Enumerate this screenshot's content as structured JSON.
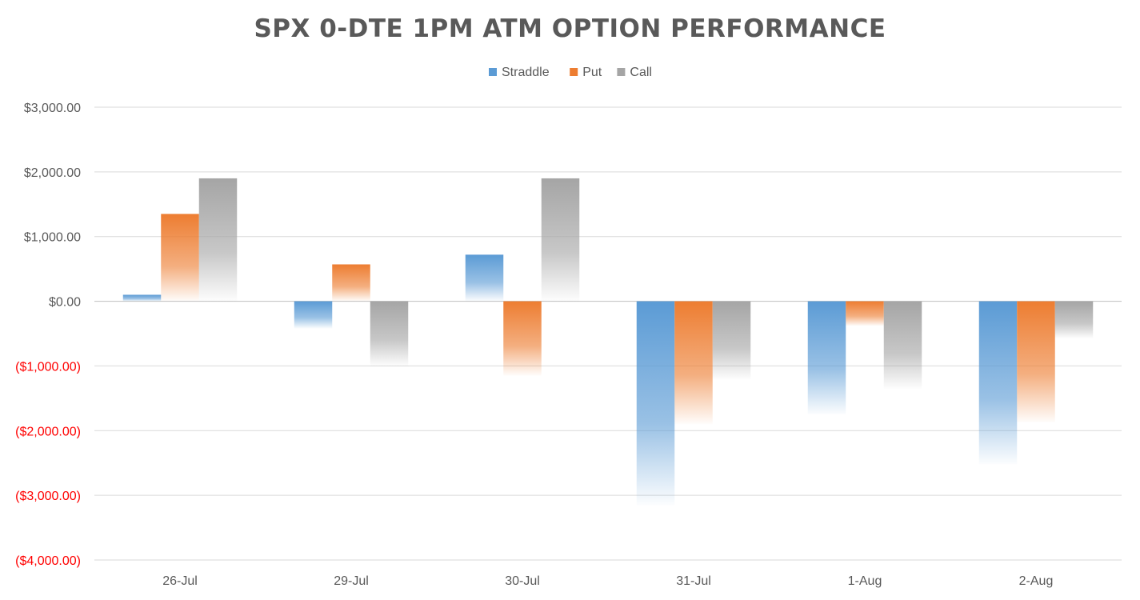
{
  "chart_data": {
    "type": "bar",
    "title": "SPX 0-DTE 1PM ATM OPTION PERFORMANCE",
    "categories": [
      "26-Jul",
      "29-Jul",
      "30-Jul",
      "31-Jul",
      "1-Aug",
      "2-Aug"
    ],
    "series": [
      {
        "name": "Straddle",
        "color": "#5b9bd5",
        "values": [
          100,
          -420,
          720,
          -3150,
          -1750,
          -2520
        ]
      },
      {
        "name": "Put",
        "color": "#ed7d31",
        "values": [
          1350,
          570,
          -1150,
          -1900,
          -380,
          -1870
        ]
      },
      {
        "name": "Call",
        "color": "#a5a5a5",
        "values": [
          1900,
          -1000,
          1900,
          -1210,
          -1350,
          -570
        ]
      }
    ],
    "y_ticks": [
      {
        "value": 3000,
        "label": "$3,000.00"
      },
      {
        "value": 2000,
        "label": "$2,000.00"
      },
      {
        "value": 1000,
        "label": "$1,000.00"
      },
      {
        "value": 0,
        "label": "$0.00"
      },
      {
        "value": -1000,
        "label": "($1,000.00)"
      },
      {
        "value": -2000,
        "label": "($2,000.00)"
      },
      {
        "value": -3000,
        "label": "($3,000.00)"
      },
      {
        "value": -4000,
        "label": "($4,000.00)"
      }
    ],
    "ylim": [
      -4000,
      3000
    ],
    "positive_label_color": "#595959",
    "negative_label_color": "#ff0000",
    "grid": true,
    "legend_position": "top-center"
  }
}
